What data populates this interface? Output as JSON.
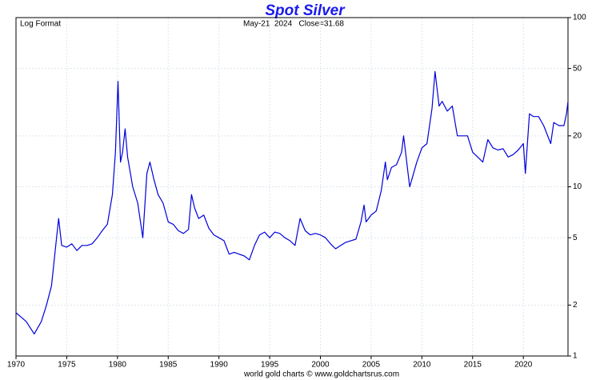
{
  "chart_data": {
    "type": "line",
    "title": "Spot Silver",
    "subtitle": "Log Format",
    "annotation": "May-21  2024   Close=31.68",
    "footer": "world gold charts © www.goldchartsrus.com",
    "color": "#0000dd",
    "log_scale": true,
    "grid": true,
    "x": [
      1970,
      1970.5,
      1971,
      1971.8,
      1972.5,
      1973,
      1973.5,
      1974,
      1974.2,
      1974.5,
      1975,
      1975.5,
      1976,
      1976.5,
      1977,
      1977.5,
      1978,
      1978.5,
      1979,
      1979.5,
      1979.8,
      1980.05,
      1980.3,
      1980.5,
      1980.75,
      1981,
      1981.5,
      1982,
      1982.5,
      1982.9,
      1983.2,
      1983.6,
      1984,
      1984.5,
      1985,
      1985.5,
      1986,
      1986.5,
      1987,
      1987.3,
      1987.6,
      1988,
      1988.5,
      1989,
      1989.5,
      1990,
      1990.5,
      1991,
      1991.5,
      1992,
      1992.5,
      1993,
      1993.5,
      1994,
      1994.5,
      1995,
      1995.5,
      1996,
      1996.5,
      1997,
      1997.5,
      1998,
      1998.5,
      1999,
      1999.5,
      2000,
      2000.5,
      2001,
      2001.5,
      2002,
      2002.5,
      2003,
      2003.5,
      2004,
      2004.3,
      2004.5,
      2005,
      2005.5,
      2006,
      2006.4,
      2006.6,
      2007,
      2007.5,
      2008,
      2008.2,
      2008.8,
      2009,
      2009.5,
      2010,
      2010.5,
      2011,
      2011.3,
      2011.7,
      2012,
      2012.5,
      2013,
      2013.5,
      2014,
      2014.5,
      2015,
      2015.5,
      2016,
      2016.5,
      2017,
      2017.5,
      2018,
      2018.5,
      2019,
      2019.5,
      2020,
      2020.2,
      2020.6,
      2021,
      2021.5,
      2022,
      2022.7,
      2023,
      2023.5,
      2024,
      2024.25,
      2024.39
    ],
    "values": [
      1.8,
      1.7,
      1.6,
      1.35,
      1.6,
      2.0,
      2.6,
      5.0,
      6.5,
      4.5,
      4.4,
      4.6,
      4.2,
      4.5,
      4.5,
      4.6,
      5.0,
      5.5,
      6.0,
      9.0,
      16,
      42,
      14,
      16,
      22,
      15,
      10,
      8,
      5,
      12,
      14,
      11,
      9,
      8,
      6.2,
      6.0,
      5.5,
      5.3,
      5.6,
      9,
      7.5,
      6.5,
      6.8,
      5.7,
      5.2,
      5.0,
      4.8,
      4.0,
      4.1,
      4.0,
      3.9,
      3.7,
      4.5,
      5.2,
      5.4,
      5.0,
      5.4,
      5.3,
      5.0,
      4.8,
      4.5,
      6.5,
      5.5,
      5.2,
      5.3,
      5.2,
      5.0,
      4.6,
      4.3,
      4.5,
      4.7,
      4.8,
      4.9,
      6.2,
      7.8,
      6.2,
      6.8,
      7.2,
      9.5,
      14,
      11,
      13,
      13.5,
      16,
      20,
      10,
      11,
      14,
      17,
      18,
      29,
      48,
      30,
      32,
      28,
      30,
      20,
      20,
      20,
      16,
      15,
      14,
      19,
      17,
      16.5,
      16.8,
      15,
      15.5,
      16.5,
      18,
      12,
      27,
      26,
      26,
      23,
      18,
      24,
      23,
      23,
      27,
      31.68
    ],
    "xlim": [
      1970,
      2024.4
    ],
    "ylim": [
      1,
      100
    ],
    "xticks": [
      1970,
      1975,
      1980,
      1985,
      1990,
      1995,
      2000,
      2005,
      2010,
      2015,
      2020
    ],
    "yticks": [
      1,
      2,
      5,
      10,
      20,
      50,
      100
    ]
  }
}
